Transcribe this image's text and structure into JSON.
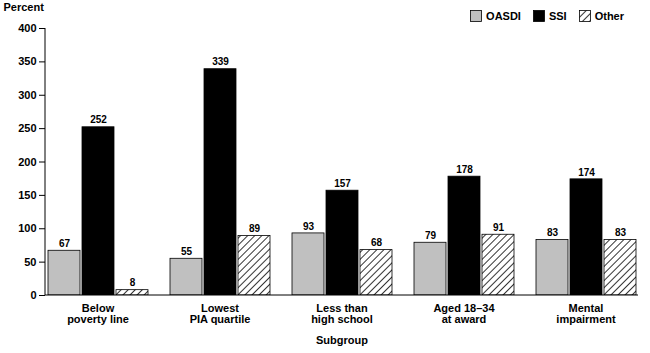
{
  "chart_data": {
    "type": "bar",
    "y_label": "Percent",
    "x_label": "Subgroup",
    "categories": [
      "Below\npoverty line",
      "Lowest\nPIA quartile",
      "Less than\nhigh school",
      "Aged 18–34\nat award",
      "Mental\nimpairment"
    ],
    "series": [
      {
        "name": "OASDI",
        "color": "#c0c0c0",
        "values": [
          67,
          55,
          93,
          79,
          83
        ]
      },
      {
        "name": "SSI",
        "color": "#000000",
        "values": [
          252,
          339,
          157,
          178,
          174
        ]
      },
      {
        "name": "Other",
        "color": "#000000",
        "marker": "hatch",
        "values": [
          8,
          89,
          68,
          91,
          83
        ]
      }
    ],
    "ylim": [
      0,
      400
    ],
    "yticks": [
      0,
      50,
      100,
      150,
      200,
      250,
      300,
      350,
      400
    ],
    "grid": false,
    "legend": "top-right",
    "data_labels": true
  }
}
